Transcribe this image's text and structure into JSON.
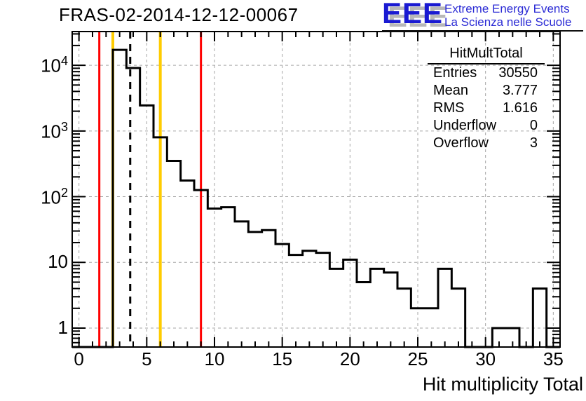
{
  "title": "FRAS-02-2014-12-12-00067",
  "logo": {
    "acronym": "EEE",
    "line1": "Extreme Energy Events",
    "line2": "La Scienza nelle Scuole",
    "color": "#1a1ad2"
  },
  "stats": {
    "title": "HitMultTotal",
    "rows": [
      {
        "label": "Entries",
        "value": "30550"
      },
      {
        "label": "Mean",
        "value": "3.777"
      },
      {
        "label": "RMS",
        "value": "1.616"
      },
      {
        "label": "Underflow",
        "value": "0"
      },
      {
        "label": "Overflow",
        "value": "3"
      }
    ]
  },
  "chart_data": {
    "type": "bar",
    "title": "FRAS-02-2014-12-12-00067",
    "xlabel": "Hit multiplicity Total",
    "ylabel": "",
    "y_scale": "log",
    "x_range": [
      -0.5,
      35.5
    ],
    "y_range": [
      0.515,
      32600
    ],
    "grid": true,
    "bin_width": 1,
    "categories": [
      0,
      1,
      2,
      3,
      4,
      5,
      6,
      7,
      8,
      9,
      10,
      11,
      12,
      13,
      14,
      15,
      16,
      17,
      18,
      19,
      20,
      21,
      22,
      23,
      24,
      25,
      26,
      27,
      28,
      29,
      30,
      31,
      32,
      33,
      34,
      35
    ],
    "values": [
      0,
      0,
      0,
      17180,
      9100,
      2450,
      800,
      350,
      176,
      126,
      66,
      69,
      42,
      29,
      31,
      19,
      13,
      15,
      14,
      8,
      11,
      5,
      8,
      7,
      4,
      2,
      2,
      8,
      4,
      0,
      0,
      1,
      1,
      0,
      4,
      0
    ],
    "underflow": 0,
    "overflow": 3,
    "x_ticks": [
      0,
      5,
      10,
      15,
      20,
      25,
      30,
      35
    ],
    "y_ticks": [
      {
        "label": "1",
        "exp": null,
        "value": 1
      },
      {
        "label": "10",
        "exp": null,
        "value": 10
      },
      {
        "label": "10",
        "exp": "2",
        "value": 100
      },
      {
        "label": "10",
        "exp": "3",
        "value": 1000
      },
      {
        "label": "10",
        "exp": "4",
        "value": 10000
      }
    ],
    "cut_lines": [
      {
        "x": 1.5,
        "color": "#ff0000",
        "style": "solid",
        "width": 3,
        "name": "red-cut-low"
      },
      {
        "x": 2.5,
        "color": "#ffcc00",
        "style": "solid",
        "width": 4,
        "name": "yellow-cut-low"
      },
      {
        "x": 3.78,
        "color": "#000000",
        "style": "dashed",
        "width": 3,
        "name": "mean-line"
      },
      {
        "x": 6.0,
        "color": "#ffcc00",
        "style": "solid",
        "width": 4,
        "name": "yellow-cut-high"
      },
      {
        "x": 9.0,
        "color": "#ff0000",
        "style": "solid",
        "width": 3,
        "name": "red-cut-high"
      }
    ],
    "grid_color": "#a6a6a6",
    "line_color": "#000000"
  }
}
